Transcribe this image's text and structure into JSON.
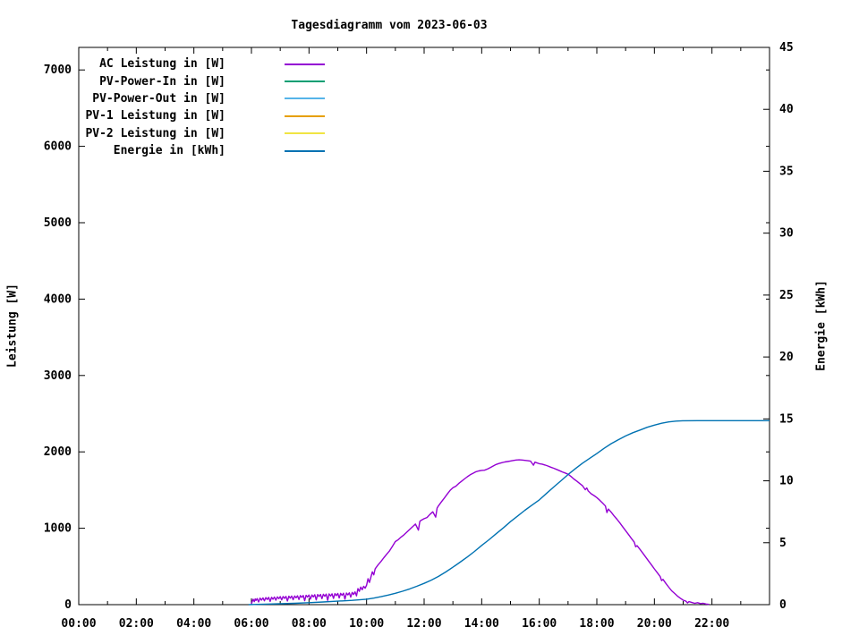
{
  "window": {
    "title": "Tagesdiagramm vom 2023-06-03"
  },
  "axes": {
    "y_left": {
      "label": "Leistung [W]",
      "ticks": [
        0,
        1000,
        2000,
        3000,
        4000,
        5000,
        6000,
        7000
      ],
      "range": [
        0,
        7295
      ]
    },
    "y_right": {
      "label": "Energie [kWh]",
      "ticks": [
        0,
        5,
        10,
        15,
        20,
        25,
        30,
        35,
        40,
        45
      ],
      "range": [
        0,
        45
      ]
    },
    "x": {
      "tick_hours": [
        0,
        2,
        4,
        6,
        8,
        10,
        12,
        14,
        16,
        18,
        20,
        22
      ],
      "tick_labels": [
        "00:00",
        "02:00",
        "04:00",
        "06:00",
        "08:00",
        "10:00",
        "12:00",
        "14:00",
        "16:00",
        "18:00",
        "20:00",
        "22:00"
      ],
      "minor_hours": [
        1,
        3,
        5,
        7,
        9,
        11,
        13,
        15,
        17,
        19,
        21,
        23
      ],
      "range_hours": [
        0,
        24
      ]
    }
  },
  "legend": {
    "items": [
      {
        "label": "AC Leistung in [W]",
        "color": "#9400D3"
      },
      {
        "label": "PV-Power-In in [W]",
        "color": "#009E73"
      },
      {
        "label": "PV-Power-Out in [W]",
        "color": "#56B4E9"
      },
      {
        "label": "PV-1 Leistung in [W]",
        "color": "#E69F00"
      },
      {
        "label": "PV-2 Leistung in [W]",
        "color": "#F0E442"
      },
      {
        "label": "Energie in [kWh]",
        "color": "#0072B2"
      }
    ]
  },
  "colors": {
    "axis": "#000000",
    "background": "#ffffff"
  },
  "chart_data": {
    "type": "line",
    "title": "Tagesdiagramm vom 2023-06-03",
    "xlabel": "",
    "x_unit": "time of day (hours)",
    "ylabel_left": "Leistung [W]",
    "ylabel_right": "Energie [kWh]",
    "xlim": [
      0,
      24
    ],
    "ylim_left": [
      0,
      7295
    ],
    "ylim_right": [
      0,
      45
    ],
    "grid": false,
    "legend_position": "top-left-inside",
    "series": [
      {
        "name": "AC Leistung in [W]",
        "color": "#9400D3",
        "axis": "left",
        "points": [
          [
            6.0,
            10
          ],
          [
            6.03,
            45
          ],
          [
            6.06,
            70
          ],
          [
            6.1,
            40
          ],
          [
            6.13,
            75
          ],
          [
            6.16,
            55
          ],
          [
            6.2,
            80
          ],
          [
            6.25,
            35
          ],
          [
            6.3,
            85
          ],
          [
            6.35,
            60
          ],
          [
            6.4,
            88
          ],
          [
            6.45,
            50
          ],
          [
            6.5,
            92
          ],
          [
            6.55,
            68
          ],
          [
            6.6,
            95
          ],
          [
            6.65,
            42
          ],
          [
            6.7,
            96
          ],
          [
            6.75,
            72
          ],
          [
            6.8,
            100
          ],
          [
            6.85,
            58
          ],
          [
            6.9,
            102
          ],
          [
            6.95,
            78
          ],
          [
            7.0,
            105
          ],
          [
            7.05,
            62
          ],
          [
            7.1,
            106
          ],
          [
            7.15,
            82
          ],
          [
            7.2,
            108
          ],
          [
            7.25,
            48
          ],
          [
            7.3,
            110
          ],
          [
            7.35,
            86
          ],
          [
            7.4,
            112
          ],
          [
            7.45,
            64
          ],
          [
            7.5,
            114
          ],
          [
            7.55,
            90
          ],
          [
            7.6,
            116
          ],
          [
            7.65,
            68
          ],
          [
            7.7,
            118
          ],
          [
            7.75,
            96
          ],
          [
            7.8,
            120
          ],
          [
            7.85,
            52
          ],
          [
            7.9,
            122
          ],
          [
            7.95,
            100
          ],
          [
            8.0,
            125
          ],
          [
            8.05,
            72
          ],
          [
            8.1,
            127
          ],
          [
            8.15,
            102
          ],
          [
            8.2,
            130
          ],
          [
            8.25,
            62
          ],
          [
            8.3,
            132
          ],
          [
            8.35,
            106
          ],
          [
            8.4,
            134
          ],
          [
            8.45,
            78
          ],
          [
            8.5,
            136
          ],
          [
            8.55,
            110
          ],
          [
            8.6,
            138
          ],
          [
            8.65,
            56
          ],
          [
            8.7,
            140
          ],
          [
            8.75,
            114
          ],
          [
            8.8,
            142
          ],
          [
            8.85,
            82
          ],
          [
            8.9,
            144
          ],
          [
            8.95,
            118
          ],
          [
            9.0,
            146
          ],
          [
            9.05,
            88
          ],
          [
            9.1,
            148
          ],
          [
            9.15,
            122
          ],
          [
            9.2,
            150
          ],
          [
            9.25,
            72
          ],
          [
            9.3,
            152
          ],
          [
            9.35,
            128
          ],
          [
            9.4,
            155
          ],
          [
            9.45,
            98
          ],
          [
            9.5,
            160
          ],
          [
            9.55,
            132
          ],
          [
            9.6,
            168
          ],
          [
            9.65,
            115
          ],
          [
            9.7,
            210
          ],
          [
            9.75,
            175
          ],
          [
            9.8,
            230
          ],
          [
            9.85,
            195
          ],
          [
            9.9,
            240
          ],
          [
            9.95,
            215
          ],
          [
            10.0,
            255
          ],
          [
            10.05,
            340
          ],
          [
            10.1,
            290
          ],
          [
            10.15,
            360
          ],
          [
            10.2,
            430
          ],
          [
            10.25,
            390
          ],
          [
            10.3,
            470
          ],
          [
            10.4,
            520
          ],
          [
            10.5,
            565
          ],
          [
            10.6,
            615
          ],
          [
            10.7,
            660
          ],
          [
            10.8,
            705
          ],
          [
            10.9,
            765
          ],
          [
            11.0,
            825
          ],
          [
            11.1,
            850
          ],
          [
            11.2,
            885
          ],
          [
            11.3,
            915
          ],
          [
            11.4,
            950
          ],
          [
            11.5,
            985
          ],
          [
            11.6,
            1020
          ],
          [
            11.7,
            1055
          ],
          [
            11.8,
            975
          ],
          [
            11.85,
            1090
          ],
          [
            11.9,
            1105
          ],
          [
            12.0,
            1125
          ],
          [
            12.1,
            1140
          ],
          [
            12.2,
            1180
          ],
          [
            12.3,
            1215
          ],
          [
            12.4,
            1145
          ],
          [
            12.45,
            1265
          ],
          [
            12.5,
            1295
          ],
          [
            12.6,
            1345
          ],
          [
            12.7,
            1395
          ],
          [
            12.8,
            1445
          ],
          [
            12.9,
            1495
          ],
          [
            13.0,
            1530
          ],
          [
            13.1,
            1550
          ],
          [
            13.2,
            1585
          ],
          [
            13.3,
            1615
          ],
          [
            13.4,
            1645
          ],
          [
            13.5,
            1675
          ],
          [
            13.6,
            1700
          ],
          [
            13.7,
            1720
          ],
          [
            13.8,
            1740
          ],
          [
            13.9,
            1750
          ],
          [
            14.0,
            1758
          ],
          [
            14.1,
            1760
          ],
          [
            14.2,
            1775
          ],
          [
            14.3,
            1795
          ],
          [
            14.4,
            1815
          ],
          [
            14.5,
            1835
          ],
          [
            14.6,
            1848
          ],
          [
            14.7,
            1858
          ],
          [
            14.8,
            1868
          ],
          [
            14.9,
            1874
          ],
          [
            15.0,
            1880
          ],
          [
            15.1,
            1888
          ],
          [
            15.2,
            1893
          ],
          [
            15.3,
            1896
          ],
          [
            15.4,
            1893
          ],
          [
            15.5,
            1889
          ],
          [
            15.6,
            1884
          ],
          [
            15.7,
            1878
          ],
          [
            15.8,
            1825
          ],
          [
            15.85,
            1865
          ],
          [
            15.9,
            1858
          ],
          [
            16.0,
            1845
          ],
          [
            16.1,
            1840
          ],
          [
            16.2,
            1828
          ],
          [
            16.3,
            1815
          ],
          [
            16.4,
            1800
          ],
          [
            16.5,
            1786
          ],
          [
            16.6,
            1770
          ],
          [
            16.7,
            1754
          ],
          [
            16.8,
            1738
          ],
          [
            16.9,
            1724
          ],
          [
            17.0,
            1708
          ],
          [
            17.1,
            1678
          ],
          [
            17.2,
            1645
          ],
          [
            17.3,
            1618
          ],
          [
            17.4,
            1588
          ],
          [
            17.5,
            1558
          ],
          [
            17.6,
            1505
          ],
          [
            17.65,
            1528
          ],
          [
            17.7,
            1488
          ],
          [
            17.8,
            1452
          ],
          [
            17.9,
            1428
          ],
          [
            18.0,
            1402
          ],
          [
            18.1,
            1368
          ],
          [
            18.2,
            1330
          ],
          [
            18.3,
            1292
          ],
          [
            18.35,
            1205
          ],
          [
            18.4,
            1252
          ],
          [
            18.5,
            1210
          ],
          [
            18.6,
            1162
          ],
          [
            18.7,
            1118
          ],
          [
            18.8,
            1070
          ],
          [
            18.9,
            1020
          ],
          [
            19.0,
            968
          ],
          [
            19.1,
            918
          ],
          [
            19.2,
            868
          ],
          [
            19.3,
            818
          ],
          [
            19.35,
            758
          ],
          [
            19.4,
            772
          ],
          [
            19.5,
            722
          ],
          [
            19.6,
            672
          ],
          [
            19.7,
            622
          ],
          [
            19.8,
            570
          ],
          [
            19.9,
            520
          ],
          [
            20.0,
            468
          ],
          [
            20.1,
            418
          ],
          [
            20.2,
            368
          ],
          [
            20.25,
            315
          ],
          [
            20.3,
            330
          ],
          [
            20.4,
            278
          ],
          [
            20.5,
            228
          ],
          [
            20.6,
            182
          ],
          [
            20.7,
            148
          ],
          [
            20.8,
            112
          ],
          [
            20.9,
            84
          ],
          [
            21.0,
            58
          ],
          [
            21.1,
            44
          ],
          [
            21.15,
            22
          ],
          [
            21.2,
            40
          ],
          [
            21.3,
            28
          ],
          [
            21.4,
            18
          ],
          [
            21.5,
            26
          ],
          [
            21.6,
            14
          ],
          [
            21.7,
            18
          ],
          [
            21.8,
            8
          ],
          [
            21.9,
            4
          ]
        ]
      },
      {
        "name": "PV-Power-In in [W]",
        "color": "#009E73",
        "axis": "left",
        "points": []
      },
      {
        "name": "PV-Power-Out in [W]",
        "color": "#56B4E9",
        "axis": "left",
        "points": []
      },
      {
        "name": "PV-1 Leistung in [W]",
        "color": "#E69F00",
        "axis": "left",
        "points": []
      },
      {
        "name": "PV-2 Leistung in [W]",
        "color": "#F0E442",
        "axis": "left",
        "points": []
      },
      {
        "name": "Energie in [kWh]",
        "color": "#0072B2",
        "axis": "right",
        "points": [
          [
            5.9,
            0
          ],
          [
            6.2,
            0.02
          ],
          [
            6.5,
            0.04
          ],
          [
            7.0,
            0.07
          ],
          [
            7.5,
            0.11
          ],
          [
            8.0,
            0.16
          ],
          [
            8.5,
            0.22
          ],
          [
            9.0,
            0.28
          ],
          [
            9.5,
            0.35
          ],
          [
            10.0,
            0.44
          ],
          [
            10.25,
            0.53
          ],
          [
            10.5,
            0.64
          ],
          [
            10.75,
            0.77
          ],
          [
            11.0,
            0.92
          ],
          [
            11.25,
            1.08
          ],
          [
            11.5,
            1.27
          ],
          [
            11.75,
            1.49
          ],
          [
            12.0,
            1.72
          ],
          [
            12.25,
            1.98
          ],
          [
            12.5,
            2.28
          ],
          [
            12.75,
            2.64
          ],
          [
            13.0,
            3.03
          ],
          [
            13.25,
            3.43
          ],
          [
            13.5,
            3.85
          ],
          [
            13.75,
            4.3
          ],
          [
            14.0,
            4.78
          ],
          [
            14.25,
            5.24
          ],
          [
            14.5,
            5.72
          ],
          [
            14.75,
            6.2
          ],
          [
            15.0,
            6.7
          ],
          [
            15.25,
            7.16
          ],
          [
            15.5,
            7.62
          ],
          [
            15.75,
            8.04
          ],
          [
            16.0,
            8.46
          ],
          [
            16.25,
            8.98
          ],
          [
            16.5,
            9.5
          ],
          [
            16.75,
            10.0
          ],
          [
            17.0,
            10.5
          ],
          [
            17.25,
            10.97
          ],
          [
            17.5,
            11.42
          ],
          [
            17.75,
            11.82
          ],
          [
            18.0,
            12.2
          ],
          [
            18.25,
            12.62
          ],
          [
            18.5,
            13.0
          ],
          [
            18.75,
            13.32
          ],
          [
            19.0,
            13.62
          ],
          [
            19.25,
            13.88
          ],
          [
            19.5,
            14.1
          ],
          [
            19.75,
            14.32
          ],
          [
            20.0,
            14.5
          ],
          [
            20.25,
            14.65
          ],
          [
            20.5,
            14.76
          ],
          [
            20.75,
            14.82
          ],
          [
            21.0,
            14.85
          ],
          [
            21.5,
            14.86
          ],
          [
            22.0,
            14.86
          ],
          [
            23.0,
            14.86
          ],
          [
            24.0,
            14.86
          ]
        ]
      }
    ],
    "annotations": {
      "energy_final_kwh": 14.9,
      "ac_peak_w": 1900,
      "ac_peak_hour": 15.3
    }
  }
}
